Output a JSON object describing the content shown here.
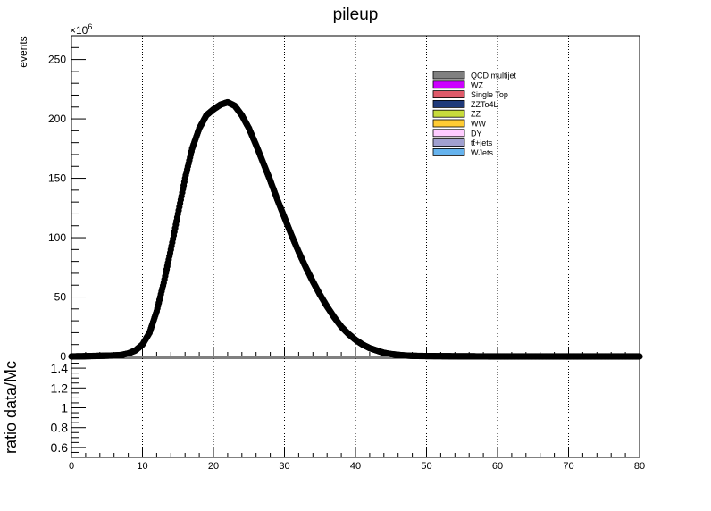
{
  "chart_data": [
    {
      "type": "scatter",
      "title": "pileup",
      "xlabel": "",
      "ylabel": "events",
      "y_multiplier_label": "×10",
      "y_multiplier_exp": "6",
      "xlim": [
        0,
        80
      ],
      "ylim": [
        0,
        270
      ],
      "x_ticks": [
        "0",
        "10",
        "20",
        "30",
        "40",
        "50",
        "60",
        "70",
        "80"
      ],
      "y_ticks": [
        "0",
        "50",
        "100",
        "150",
        "200",
        "250"
      ],
      "grid_x": true,
      "grid_y": false,
      "legend_position": "top-right",
      "legend": [
        {
          "label": "QCD multijet",
          "color": "#808080"
        },
        {
          "label": "WZ",
          "color": "#cc00ff"
        },
        {
          "label": "Single Top",
          "color": "#e05a6a"
        },
        {
          "label": "ZZTo4L",
          "color": "#1f3a7a"
        },
        {
          "label": "ZZ",
          "color": "#c8dc3c"
        },
        {
          "label": "WW",
          "color": "#ffcc33"
        },
        {
          "label": "DY",
          "color": "#ffccff"
        },
        {
          "label": "tt̄+jets",
          "color": "#a0a0d0"
        },
        {
          "label": "WJets",
          "color": "#66b3ee"
        }
      ],
      "series": [
        {
          "name": "data",
          "color": "#000000",
          "points": [
            [
              0,
              0
            ],
            [
              2,
              0.2
            ],
            [
              4,
              0.5
            ],
            [
              6,
              0.8
            ],
            [
              7,
              1.2
            ],
            [
              8,
              2.5
            ],
            [
              9,
              5
            ],
            [
              10,
              10
            ],
            [
              11,
              20
            ],
            [
              12,
              38
            ],
            [
              13,
              62
            ],
            [
              14,
              90
            ],
            [
              15,
              120
            ],
            [
              16,
              150
            ],
            [
              17,
              175
            ],
            [
              18,
              192
            ],
            [
              19,
              203
            ],
            [
              20,
              208
            ],
            [
              21,
              212
            ],
            [
              22,
              214
            ],
            [
              23,
              211
            ],
            [
              24,
              203
            ],
            [
              25,
              192
            ],
            [
              26,
              178
            ],
            [
              27,
              163
            ],
            [
              28,
              148
            ],
            [
              29,
              132
            ],
            [
              30,
              117
            ],
            [
              31,
              102
            ],
            [
              32,
              88
            ],
            [
              33,
              75
            ],
            [
              34,
              63
            ],
            [
              35,
              52
            ],
            [
              36,
              42
            ],
            [
              37,
              33
            ],
            [
              38,
              25
            ],
            [
              39,
              19
            ],
            [
              40,
              14
            ],
            [
              41,
              10
            ],
            [
              42,
              7
            ],
            [
              43,
              5
            ],
            [
              44,
              3
            ],
            [
              45,
              2
            ],
            [
              46,
              1.3
            ],
            [
              47,
              0.8
            ],
            [
              48,
              0.5
            ],
            [
              50,
              0.3
            ],
            [
              55,
              0.1
            ],
            [
              60,
              0
            ],
            [
              70,
              0
            ],
            [
              80,
              0
            ]
          ]
        }
      ]
    },
    {
      "type": "line",
      "xlabel": "",
      "ylabel": "ratio data/Mc",
      "xlim": [
        0,
        80
      ],
      "ylim": [
        0.5,
        1.5
      ],
      "x_ticks": [
        "0",
        "10",
        "20",
        "30",
        "40",
        "50",
        "60",
        "70",
        "80"
      ],
      "y_ticks": [
        "0.6",
        "0.8",
        "1",
        "1.2",
        "1.4"
      ],
      "grid_x": true,
      "grid_y": false,
      "series": []
    }
  ]
}
